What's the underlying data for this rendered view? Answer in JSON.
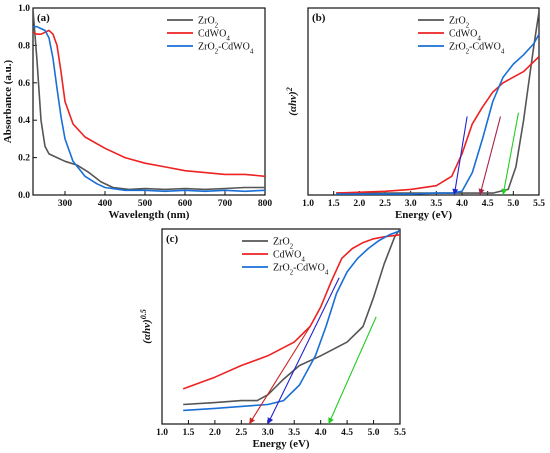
{
  "chart_data": [
    {
      "type": "line",
      "panel_label": "(a)",
      "xlabel": "Wavelength (nm)",
      "ylabel": "Absorbance (a.u.)",
      "xlim": [
        220,
        800
      ],
      "ylim": [
        0,
        1.0
      ],
      "xticks": [
        "300",
        "400",
        "500",
        "600",
        "700",
        "800"
      ],
      "yticks": [
        "0.0",
        "0.2",
        "0.4",
        "0.6",
        "0.8",
        "1.0"
      ],
      "legend_position": "top-right",
      "series": [
        {
          "name": "ZrO2",
          "color": "#555555",
          "x": [
            220,
            230,
            240,
            250,
            260,
            280,
            300,
            330,
            360,
            390,
            420,
            460,
            500,
            550,
            600,
            650,
            700,
            750,
            800
          ],
          "y": [
            0.99,
            0.72,
            0.4,
            0.26,
            0.22,
            0.2,
            0.18,
            0.16,
            0.12,
            0.07,
            0.04,
            0.03,
            0.035,
            0.03,
            0.035,
            0.03,
            0.035,
            0.04,
            0.04
          ]
        },
        {
          "name": "CdWO4",
          "color": "#ee2222",
          "x": [
            220,
            230,
            240,
            250,
            260,
            270,
            280,
            290,
            300,
            320,
            350,
            400,
            450,
            500,
            550,
            600,
            650,
            700,
            750,
            800
          ],
          "y": [
            0.87,
            0.86,
            0.86,
            0.87,
            0.88,
            0.86,
            0.8,
            0.66,
            0.5,
            0.38,
            0.31,
            0.25,
            0.2,
            0.17,
            0.15,
            0.13,
            0.12,
            0.11,
            0.11,
            0.1
          ]
        },
        {
          "name": "ZrO2-CdWO4",
          "color": "#1a6fd6",
          "x": [
            220,
            230,
            240,
            250,
            260,
            270,
            280,
            290,
            300,
            320,
            350,
            380,
            400,
            450,
            500,
            550,
            600,
            650,
            700,
            750,
            800
          ],
          "y": [
            0.9,
            0.9,
            0.89,
            0.88,
            0.84,
            0.73,
            0.57,
            0.42,
            0.3,
            0.18,
            0.1,
            0.06,
            0.04,
            0.025,
            0.025,
            0.02,
            0.025,
            0.02,
            0.025,
            0.02,
            0.025
          ]
        }
      ]
    },
    {
      "type": "line",
      "panel_label": "(b)",
      "xlabel": "Energy (eV)",
      "ylabel": "(αhν)²",
      "xlim": [
        1.0,
        5.5
      ],
      "ylim": [
        0,
        1.0
      ],
      "xticks": [
        "1.0",
        "1.5",
        "2.0",
        "2.5",
        "3.0",
        "3.5",
        "4.0",
        "4.5",
        "5.0",
        "5.5"
      ],
      "legend_position": "top-right",
      "series": [
        {
          "name": "ZrO2",
          "color": "#555555",
          "x": [
            1.55,
            3.0,
            4.0,
            4.6,
            4.9,
            5.05,
            5.2,
            5.3,
            5.4,
            5.5
          ],
          "y": [
            0.01,
            0.01,
            0.01,
            0.01,
            0.03,
            0.15,
            0.4,
            0.6,
            0.8,
            0.98
          ]
        },
        {
          "name": "CdWO4",
          "color": "#ee2222",
          "x": [
            1.55,
            2.5,
            3.0,
            3.5,
            3.8,
            4.0,
            4.2,
            4.4,
            4.6,
            4.8,
            5.0,
            5.2,
            5.5
          ],
          "y": [
            0.01,
            0.02,
            0.03,
            0.05,
            0.1,
            0.22,
            0.38,
            0.47,
            0.55,
            0.6,
            0.63,
            0.66,
            0.74
          ]
        },
        {
          "name": "ZrO2-CdWO4",
          "color": "#1a6fd6",
          "x": [
            1.55,
            3.0,
            3.5,
            3.8,
            4.0,
            4.2,
            4.4,
            4.6,
            4.8,
            5.0,
            5.2,
            5.4,
            5.5
          ],
          "y": [
            0.005,
            0.005,
            0.01,
            0.01,
            0.02,
            0.12,
            0.3,
            0.5,
            0.63,
            0.7,
            0.75,
            0.81,
            0.86
          ]
        }
      ],
      "tangents": [
        {
          "color": "#2222cc",
          "x": [
            3.85,
            4.1
          ],
          "y": [
            0.0,
            0.42
          ]
        },
        {
          "color": "#aa2244",
          "x": [
            4.35,
            4.75
          ],
          "y": [
            0.0,
            0.42
          ]
        },
        {
          "color": "#22cc22",
          "x": [
            4.8,
            5.1
          ],
          "y": [
            0.0,
            0.44
          ]
        }
      ]
    },
    {
      "type": "line",
      "panel_label": "(c)",
      "xlabel": "Energy (eV)",
      "ylabel": "(αhν)^0.5",
      "xlim": [
        1.0,
        5.5
      ],
      "ylim": [
        0,
        1.0
      ],
      "xticks": [
        "1.0",
        "1.5",
        "2.0",
        "2.5",
        "3.0",
        "3.5",
        "4.0",
        "4.5",
        "5.0",
        "5.5"
      ],
      "legend_position": "top-left",
      "series": [
        {
          "name": "ZrO2",
          "color": "#555555",
          "x": [
            1.4,
            2.0,
            2.5,
            2.8,
            3.0,
            3.3,
            3.6,
            4.0,
            4.5,
            4.8,
            5.0,
            5.2,
            5.4,
            5.5
          ],
          "y": [
            0.1,
            0.11,
            0.12,
            0.12,
            0.15,
            0.23,
            0.3,
            0.35,
            0.42,
            0.5,
            0.65,
            0.82,
            0.96,
            1.0
          ]
        },
        {
          "name": "CdWO4",
          "color": "#ee2222",
          "x": [
            1.4,
            1.6,
            2.0,
            2.5,
            3.0,
            3.5,
            3.8,
            4.0,
            4.2,
            4.4,
            4.6,
            4.8,
            5.0,
            5.2,
            5.5
          ],
          "y": [
            0.18,
            0.2,
            0.24,
            0.3,
            0.35,
            0.42,
            0.5,
            0.6,
            0.73,
            0.85,
            0.9,
            0.93,
            0.95,
            0.96,
            0.97
          ]
        },
        {
          "name": "ZrO2-CdWO4",
          "color": "#1a6fd6",
          "x": [
            1.4,
            2.0,
            2.5,
            3.0,
            3.3,
            3.6,
            3.9,
            4.1,
            4.3,
            4.5,
            4.7,
            4.9,
            5.1,
            5.3,
            5.5
          ],
          "y": [
            0.07,
            0.08,
            0.09,
            0.1,
            0.12,
            0.2,
            0.35,
            0.5,
            0.67,
            0.78,
            0.85,
            0.9,
            0.94,
            0.97,
            0.99
          ]
        }
      ],
      "tangents": [
        {
          "color": "#cc2222",
          "x": [
            2.65,
            3.8
          ],
          "y": [
            0.0,
            0.5
          ]
        },
        {
          "color": "#2222cc",
          "x": [
            3.0,
            4.35
          ],
          "y": [
            0.0,
            0.75
          ]
        },
        {
          "color": "#22cc22",
          "x": [
            4.15,
            5.05
          ],
          "y": [
            0.0,
            0.55
          ]
        }
      ]
    }
  ]
}
